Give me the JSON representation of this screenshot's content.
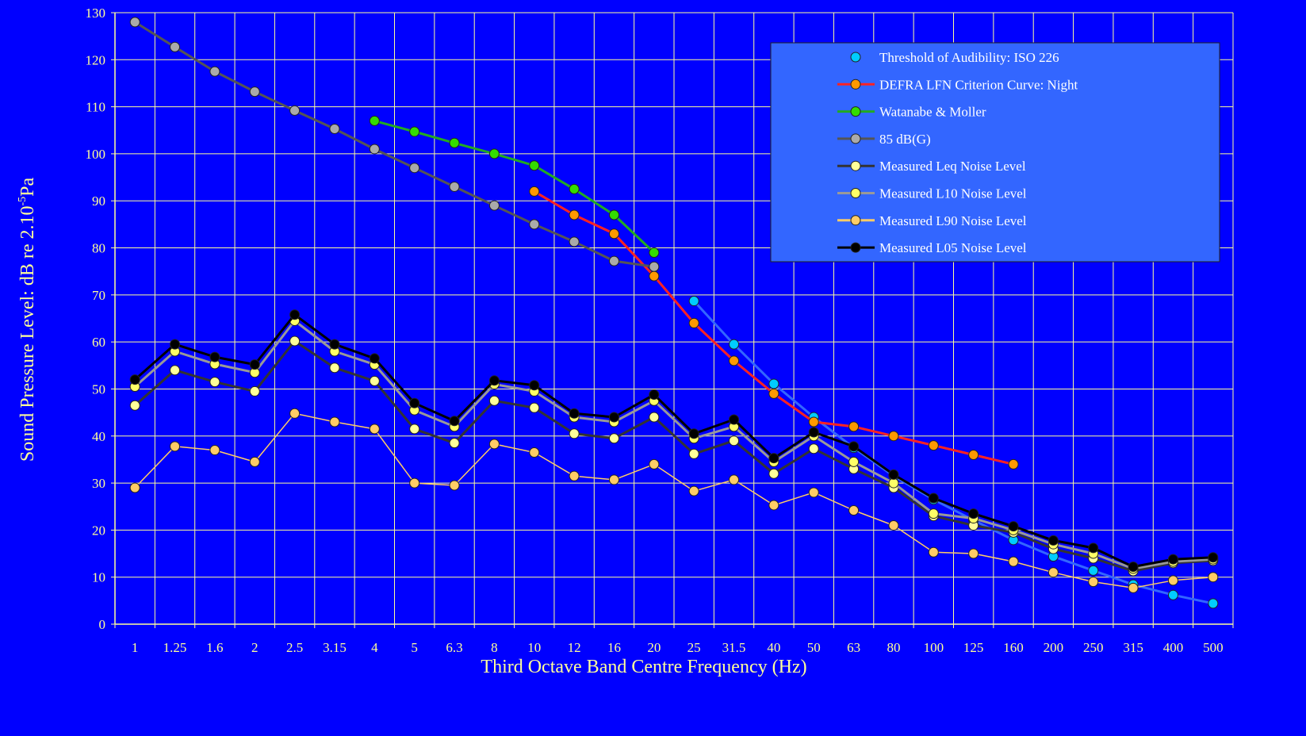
{
  "chart_data": {
    "type": "line",
    "title": "",
    "xlabel": "Third Octave Band Centre Frequency (Hz)",
    "ylabel": "Sound Pressure Level: dB re 2.10",
    "ylabel_superscript": "-5",
    "ylabel_unit": "Pa",
    "ylim": [
      0,
      130
    ],
    "yticks": [
      "0",
      "10",
      "20",
      "30",
      "40",
      "50",
      "60",
      "70",
      "80",
      "90",
      "100",
      "110",
      "120",
      "130"
    ],
    "grid": true,
    "legend_position": "top-right",
    "categories": [
      "1",
      "1.25",
      "1.6",
      "2",
      "2.5",
      "3.15",
      "4",
      "5",
      "6.3",
      "8",
      "10",
      "12",
      "16",
      "20",
      "25",
      "31.5",
      "40",
      "50",
      "63",
      "80",
      "100",
      "125",
      "160",
      "200",
      "250",
      "315",
      "400",
      "500"
    ],
    "series": [
      {
        "name": "Threshold of Audibility: ISO 226",
        "line_color": "#3366ff",
        "marker_color": "#00ccff",
        "values": [
          null,
          null,
          null,
          null,
          null,
          null,
          null,
          null,
          null,
          null,
          null,
          null,
          null,
          null,
          68.7,
          59.5,
          51.1,
          44.0,
          37.5,
          31.5,
          26.5,
          22.1,
          17.9,
          14.4,
          11.4,
          8.4,
          6.2,
          4.4
        ]
      },
      {
        "name": "DEFRA LFN Criterion Curve: Night",
        "line_color": "#ff2222",
        "marker_color": "#ff9900",
        "values": [
          null,
          null,
          null,
          null,
          null,
          null,
          null,
          null,
          null,
          null,
          92,
          87,
          83,
          74,
          64,
          56,
          49,
          43,
          42,
          40,
          38,
          36,
          34,
          null,
          null,
          null,
          null,
          null
        ]
      },
      {
        "name": "Watanabe & Moller",
        "line_color": "#22aa22",
        "marker_color": "#33dd00",
        "values": [
          null,
          null,
          null,
          null,
          null,
          null,
          107,
          104.7,
          102.3,
          100,
          97.5,
          92.5,
          87,
          79,
          null,
          null,
          null,
          null,
          null,
          null,
          null,
          null,
          null,
          null,
          null,
          null,
          null,
          null
        ]
      },
      {
        "name": "85 dB(G)",
        "line_color": "#555555",
        "marker_color": "#aaaaaa",
        "values": [
          128,
          122.7,
          117.5,
          113.2,
          109.2,
          105.3,
          101,
          97,
          93,
          89,
          85,
          81.3,
          77.2,
          76,
          null,
          null,
          null,
          null,
          null,
          null,
          null,
          null,
          null,
          null,
          null,
          null,
          null,
          null
        ]
      },
      {
        "name": "Measured Leq Noise Level",
        "line_color": "#333333",
        "marker_color": "#ffff99",
        "values": [
          46.5,
          54,
          51.5,
          49.5,
          60.2,
          54.5,
          51.7,
          41.5,
          38.5,
          47.5,
          46,
          40.5,
          39.5,
          44,
          36.2,
          39,
          32,
          37.3,
          33,
          29,
          23,
          21,
          19.5,
          16,
          14,
          11.3,
          13,
          13.5
        ]
      },
      {
        "name": "Measured L10 Noise Level",
        "line_color": "#999999",
        "marker_color": "#ffff66",
        "values": [
          50.5,
          58,
          55.3,
          53.5,
          64.5,
          58,
          55.2,
          45.5,
          42,
          51,
          49.5,
          44,
          43,
          47.5,
          39.5,
          42,
          34.5,
          40,
          34.5,
          30,
          23.5,
          22.5,
          20,
          17,
          15,
          11.8,
          13.3,
          13.8
        ]
      },
      {
        "name": "Measured L90 Noise Level",
        "line_color": "#ffcc66",
        "marker_color": "#ffcc66",
        "values": [
          29,
          37.8,
          37,
          34.5,
          44.8,
          43,
          41.5,
          30,
          29.5,
          38.3,
          36.5,
          31.5,
          30.7,
          34,
          28.3,
          30.7,
          25.3,
          28,
          24.2,
          21,
          15.3,
          15,
          13.3,
          11,
          9,
          7.7,
          9.3,
          10
        ]
      },
      {
        "name": "Measured L05 Noise Level",
        "line_color": "#000000",
        "marker_color": "#000000",
        "values": [
          52,
          59.5,
          56.8,
          55.2,
          65.8,
          59.5,
          56.5,
          47,
          43.2,
          51.8,
          50.8,
          44.8,
          44,
          48.8,
          40.5,
          43.5,
          35.3,
          40.8,
          37.8,
          31.8,
          26.8,
          23.5,
          20.8,
          17.8,
          16.2,
          12.2,
          13.8,
          14.2
        ]
      }
    ]
  }
}
